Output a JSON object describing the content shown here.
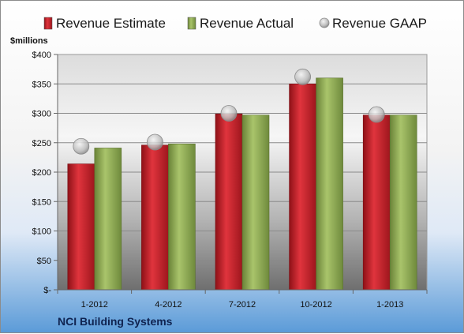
{
  "chart_data": {
    "type": "bar",
    "title": "",
    "company": "NCI Building Systems",
    "unit_label": "$millions",
    "categories": [
      "1-2012",
      "4-2012",
      "7-2012",
      "10-2012",
      "1-2013"
    ],
    "series": [
      {
        "name": "Revenue Estimate",
        "type": "bar",
        "color": "#c0232b",
        "values": [
          214,
          246,
          299,
          350,
          297
        ]
      },
      {
        "name": "Revenue Actual",
        "type": "bar",
        "color": "#8ea855",
        "values": [
          241,
          248,
          297,
          360,
          297
        ]
      },
      {
        "name": "Revenue GAAP",
        "type": "marker",
        "color": "#bdbdbd",
        "values": [
          244,
          251,
          300,
          362,
          298
        ]
      }
    ],
    "y_ticks": [
      "$-",
      "$50",
      "$100",
      "$150",
      "$200",
      "$250",
      "$300",
      "$350",
      "$400"
    ],
    "ylim": [
      0,
      400
    ],
    "grid": true,
    "legend_position": "top"
  }
}
